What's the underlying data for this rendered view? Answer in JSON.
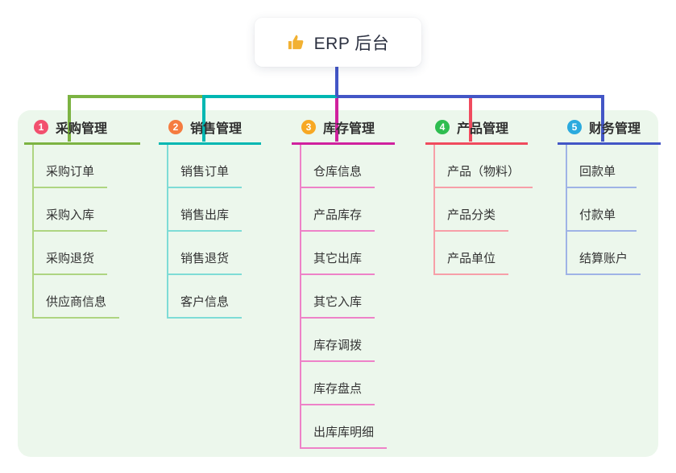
{
  "root": {
    "label": "ERP 后台",
    "icon": "thumbs-up-icon",
    "connector_color": "#4356c6",
    "icon_color": "#f2b132"
  },
  "canvas": {
    "background": "#ecf7ec"
  },
  "branches": [
    {
      "num": "1",
      "title": "采购管理",
      "badge_color": "#f2506e",
      "line_color": "#7cb342",
      "light_color": "#aed581",
      "children": [
        "采购订单",
        "采购入库",
        "采购退货",
        "供应商信息"
      ]
    },
    {
      "num": "2",
      "title": "销售管理",
      "badge_color": "#f57c40",
      "line_color": "#00b7b2",
      "light_color": "#7edcd6",
      "children": [
        "销售订单",
        "销售出库",
        "销售退货",
        "客户信息"
      ]
    },
    {
      "num": "3",
      "title": "库存管理",
      "badge_color": "#f7a823",
      "line_color": "#d0219e",
      "light_color": "#ee82c8",
      "children": [
        "仓库信息",
        "产品库存",
        "其它出库",
        "其它入库",
        "库存调拨",
        "库存盘点",
        "出库库明细"
      ]
    },
    {
      "num": "4",
      "title": "产品管理",
      "badge_color": "#2ebd50",
      "line_color": "#f04b5e",
      "light_color": "#f79fa8",
      "children": [
        "产品（物料）",
        "产品分类",
        "产品单位"
      ]
    },
    {
      "num": "5",
      "title": "财务管理",
      "badge_color": "#2baade",
      "line_color": "#4356c6",
      "light_color": "#9fb3e6",
      "children": [
        "回款单",
        "付款单",
        "结算账户"
      ]
    }
  ]
}
